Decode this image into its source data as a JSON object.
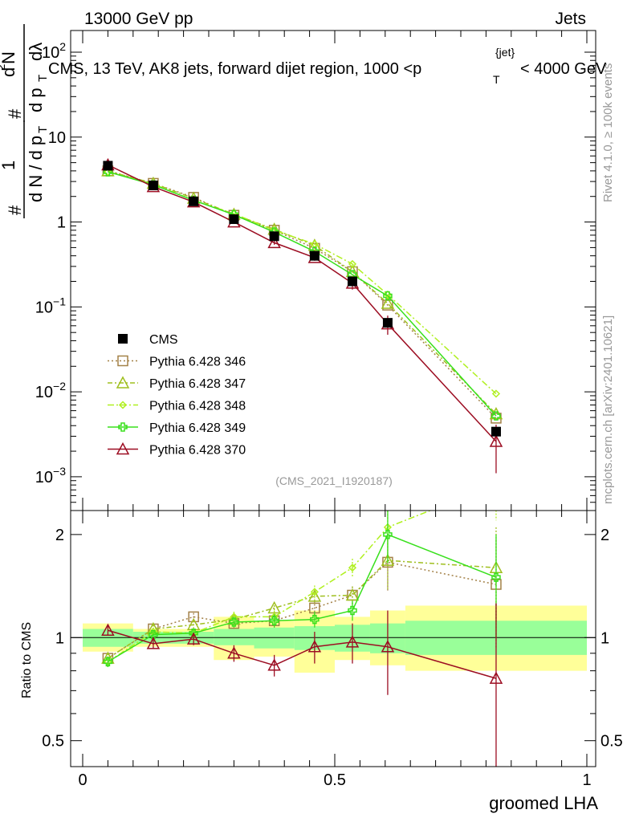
{
  "header": {
    "left": "13000 GeV pp",
    "right": "Jets"
  },
  "title": "CMS, 13 TeV, AK8 jets, forward dijet region, 1000 <p_T^{jet}< 4000 GeV",
  "title_parts": {
    "main": "CMS, 13 TeV, AK8 jets, forward dijet region, 1000 <p",
    "sub": "T",
    "sup": "{jet}",
    "tail": "< 4000 GeV"
  },
  "y_label_main": "1/(dN/dp_T) d²N/(dp_T dλ)",
  "y_label_parts": {
    "hash": "#",
    "frac_num": "1",
    "frac_den": "d N / d p",
    "sub_t": "T",
    "d2n": "d",
    "d2n_sup": "2",
    "d2n_n": "N",
    "dpt_dl": "d p",
    "dlambda": "dλ"
  },
  "ratio_ylabel": "Ratio to CMS",
  "xlabel": "groomed LHA",
  "watermark": "(CMS_2021_I1920187)",
  "side_right_top": "Rivet 4.1.0, ≥ 100k events",
  "side_right_bottom": "mcplots.cern.ch [arXiv:2401.10621]",
  "colors": {
    "cms": "#000000",
    "p346": "#a38147",
    "p347": "#9fbf1f",
    "p348": "#b0f020",
    "p349": "#38e01c",
    "p370": "#9c0d22",
    "band_inner": "#99ff99",
    "band_outer": "#ffff99"
  },
  "chart_data": {
    "type": "line",
    "x_axis": {
      "label": "groomed LHA",
      "lim": [
        0,
        1
      ],
      "ticks": [
        "0",
        "0.5",
        "1"
      ]
    },
    "main": {
      "yscale": "log",
      "ylim": [
        0.0004,
        180
      ],
      "ticks": [
        {
          "v": 0.001,
          "base": "10",
          "exp": "−3"
        },
        {
          "v": 0.01,
          "base": "10",
          "exp": "−2"
        },
        {
          "v": 0.1,
          "base": "10",
          "exp": "−1"
        },
        {
          "v": 1,
          "base": "1",
          "exp": ""
        },
        {
          "v": 10,
          "base": "10",
          "exp": ""
        },
        {
          "v": 100,
          "base": "10",
          "exp": "2"
        }
      ]
    },
    "ratio": {
      "yscale": "log",
      "ylim": [
        0.42,
        2.35
      ],
      "label": "Ratio to CMS",
      "ticks": [
        {
          "v": 0.5,
          "label": "0.5"
        },
        {
          "v": 1,
          "label": "1"
        },
        {
          "v": 2,
          "label": "2"
        }
      ]
    },
    "bin_edges": [
      0,
      0.1,
      0.18,
      0.26,
      0.34,
      0.42,
      0.5,
      0.57,
      0.64,
      1.0
    ],
    "x": [
      0.05,
      0.14,
      0.22,
      0.3,
      0.38,
      0.46,
      0.535,
      0.605,
      0.82
    ],
    "data": {
      "name": "CMS",
      "y": [
        4.6,
        2.7,
        1.75,
        1.08,
        0.68,
        0.4,
        0.2,
        0.065,
        0.0034
      ],
      "band_inner": [
        [
          0.94,
          1.06
        ],
        [
          0.96,
          1.04
        ],
        [
          0.96,
          1.04
        ],
        [
          0.95,
          1.06
        ],
        [
          0.93,
          1.07
        ],
        [
          0.92,
          1.08
        ],
        [
          0.91,
          1.09
        ],
        [
          0.9,
          1.1
        ],
        [
          0.89,
          1.12
        ]
      ],
      "band_outer": [
        [
          0.91,
          1.1
        ],
        [
          0.94,
          1.06
        ],
        [
          0.94,
          1.06
        ],
        [
          0.86,
          1.15
        ],
        [
          0.88,
          1.12
        ],
        [
          0.79,
          1.2
        ],
        [
          0.86,
          1.15
        ],
        [
          0.83,
          1.2
        ],
        [
          0.8,
          1.24
        ]
      ]
    },
    "series": [
      {
        "name": "Pythia 6.428 346",
        "key": "p346",
        "marker": "square",
        "dash": "2,3",
        "y": [
          4.0,
          2.85,
          1.95,
          1.2,
          0.8,
          0.49,
          0.26,
          0.105,
          0.0049
        ],
        "ratio": [
          0.87,
          1.06,
          1.15,
          1.1,
          1.12,
          1.22,
          1.33,
          1.66,
          1.43
        ],
        "ratio_err": [
          0.03,
          0.03,
          0.03,
          0.04,
          0.05,
          0.06,
          0.08,
          0.3,
          0.5
        ]
      },
      {
        "name": "Pythia 6.428 347",
        "key": "p347",
        "marker": "triangle",
        "dash": "6,3,2,3",
        "y": [
          4.0,
          2.85,
          1.9,
          1.23,
          0.82,
          0.53,
          0.26,
          0.11,
          0.0055
        ],
        "ratio": [
          0.87,
          1.06,
          1.09,
          1.13,
          1.22,
          1.32,
          1.33,
          1.68,
          1.6
        ],
        "ratio_err": [
          0.03,
          0.03,
          0.03,
          0.04,
          0.05,
          0.06,
          0.08,
          0.3,
          0.5
        ]
      },
      {
        "name": "Pythia 6.428 348",
        "key": "p348",
        "marker": "diamond",
        "dash": "8,3,2,3",
        "y": [
          3.9,
          2.8,
          1.8,
          1.25,
          0.8,
          0.55,
          0.32,
          0.14,
          0.0095
        ],
        "ratio": [
          0.85,
          1.04,
          1.03,
          1.15,
          1.15,
          1.36,
          1.6,
          2.1,
          2.8
        ],
        "ratio_err": [
          0.03,
          0.03,
          0.03,
          0.04,
          0.05,
          0.06,
          0.1,
          0.35,
          0.6
        ]
      },
      {
        "name": "Pythia 6.428 349",
        "key": "p349",
        "marker": "cross",
        "dash": "",
        "y": [
          3.9,
          2.75,
          1.8,
          1.22,
          0.76,
          0.45,
          0.24,
          0.135,
          0.0052
        ],
        "ratio": [
          0.85,
          1.02,
          1.03,
          1.11,
          1.12,
          1.13,
          1.2,
          2.0,
          1.5
        ],
        "ratio_err": [
          0.03,
          0.03,
          0.03,
          0.04,
          0.05,
          0.06,
          0.08,
          0.35,
          0.5
        ]
      },
      {
        "name": "Pythia 6.428 370",
        "key": "p370",
        "marker": "triangle-open",
        "dash": "",
        "y": [
          4.7,
          2.6,
          1.72,
          1.0,
          0.57,
          0.38,
          0.19,
          0.063,
          0.0026
        ],
        "y_err": [
          0.1,
          0.05,
          0.04,
          0.03,
          0.03,
          0.03,
          0.03,
          0.016,
          0.0015
        ],
        "ratio": [
          1.05,
          0.96,
          0.99,
          0.9,
          0.83,
          0.94,
          0.97,
          0.94,
          0.76
        ],
        "ratio_err": [
          0.03,
          0.03,
          0.04,
          0.05,
          0.06,
          0.1,
          0.13,
          0.26,
          0.5
        ]
      }
    ]
  }
}
